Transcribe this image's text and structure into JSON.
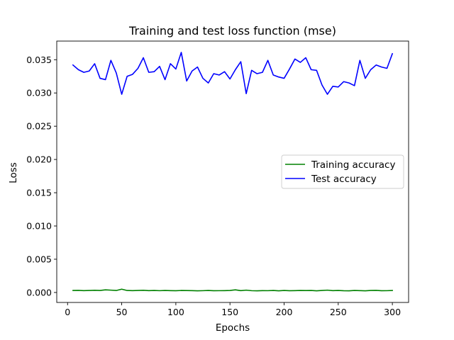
{
  "chart_data": {
    "type": "line",
    "title": "Training and test loss function (mse)",
    "xlabel": "Epochs",
    "ylabel": "Loss",
    "xlim": [
      -10,
      315
    ],
    "ylim": [
      -0.0015,
      0.0378
    ],
    "xticks": [
      0,
      50,
      100,
      150,
      200,
      250,
      300
    ],
    "xtick_labels": [
      "0",
      "50",
      "100",
      "150",
      "200",
      "250",
      "300"
    ],
    "yticks": [
      0.0,
      0.005,
      0.01,
      0.015,
      0.02,
      0.025,
      0.03,
      0.035
    ],
    "ytick_labels": [
      "0.000",
      "0.005",
      "0.010",
      "0.015",
      "0.020",
      "0.025",
      "0.030",
      "0.035"
    ],
    "grid": false,
    "legend_position": "center-right",
    "series": [
      {
        "name": "Training accuracy",
        "color": "#008000",
        "x": [
          5,
          10,
          15,
          20,
          25,
          30,
          35,
          40,
          45,
          50,
          55,
          60,
          65,
          70,
          75,
          80,
          85,
          90,
          95,
          100,
          105,
          110,
          115,
          120,
          125,
          130,
          135,
          140,
          145,
          150,
          155,
          160,
          165,
          170,
          175,
          180,
          185,
          190,
          195,
          200,
          205,
          210,
          215,
          220,
          225,
          230,
          235,
          240,
          245,
          250,
          255,
          260,
          265,
          270,
          275,
          280,
          285,
          290,
          295,
          300
        ],
        "values": [
          0.0003,
          0.00032,
          0.00028,
          0.0003,
          0.00033,
          0.0003,
          0.0004,
          0.00035,
          0.0003,
          0.0005,
          0.0003,
          0.00028,
          0.0003,
          0.00033,
          0.00028,
          0.0003,
          0.00027,
          0.0003,
          0.00028,
          0.00026,
          0.0003,
          0.00029,
          0.00028,
          0.00025,
          0.00027,
          0.0003,
          0.00026,
          0.00027,
          0.00028,
          0.0003,
          0.0004,
          0.00028,
          0.00035,
          0.00027,
          0.00025,
          0.00028,
          0.00027,
          0.0003,
          0.00025,
          0.0003,
          0.00026,
          0.00028,
          0.0003,
          0.00029,
          0.0003,
          0.00025,
          0.0003,
          0.00035,
          0.00028,
          0.0003,
          0.00026,
          0.00025,
          0.0003,
          0.00028,
          0.00025,
          0.0003,
          0.00032,
          0.00026,
          0.00027,
          0.0003
        ]
      },
      {
        "name": "Test accuracy",
        "color": "#0000ff",
        "x": [
          5,
          10,
          15,
          20,
          25,
          30,
          35,
          40,
          45,
          50,
          55,
          60,
          65,
          70,
          75,
          80,
          85,
          90,
          95,
          100,
          105,
          110,
          115,
          120,
          125,
          130,
          135,
          140,
          145,
          150,
          155,
          160,
          165,
          170,
          175,
          180,
          185,
          190,
          195,
          200,
          205,
          210,
          215,
          220,
          225,
          230,
          235,
          240,
          245,
          250,
          255,
          260,
          265,
          270,
          275,
          280,
          285,
          290,
          295,
          300
        ],
        "values": [
          0.0342,
          0.0335,
          0.0331,
          0.0333,
          0.0344,
          0.0322,
          0.032,
          0.0349,
          0.033,
          0.0298,
          0.0325,
          0.0328,
          0.0337,
          0.0353,
          0.0331,
          0.0332,
          0.034,
          0.032,
          0.0344,
          0.0336,
          0.0361,
          0.0318,
          0.0333,
          0.0339,
          0.0322,
          0.0315,
          0.0329,
          0.0327,
          0.0332,
          0.0321,
          0.0335,
          0.0347,
          0.0299,
          0.0334,
          0.0329,
          0.0331,
          0.0349,
          0.0327,
          0.0324,
          0.0322,
          0.0336,
          0.0351,
          0.0346,
          0.0353,
          0.0335,
          0.0334,
          0.0312,
          0.0298,
          0.031,
          0.0309,
          0.0317,
          0.0315,
          0.0311,
          0.0349,
          0.0322,
          0.0335,
          0.0342,
          0.0339,
          0.0337,
          0.0359
        ]
      }
    ]
  }
}
